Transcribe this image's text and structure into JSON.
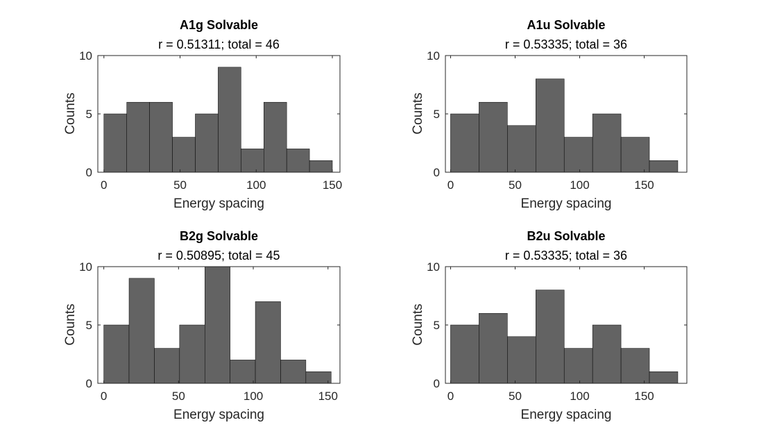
{
  "colors": {
    "bar_fill": "#636363",
    "bar_edge": "#000000",
    "axis": "#262626",
    "background": "#ffffff"
  },
  "chart_data": [
    {
      "type": "bar",
      "title": "A1g Solvable",
      "subtitle": "r = 0.51311; total = 46",
      "xlabel": "Energy spacing",
      "ylabel": "Counts",
      "xlim": [
        -4,
        155
      ],
      "ylim": [
        0,
        10
      ],
      "xticks": [
        "0",
        "50",
        "100",
        "150"
      ],
      "yticks": [
        "0",
        "5",
        "10"
      ],
      "bin_edges": [
        0,
        15,
        30,
        45,
        60,
        75,
        90,
        105,
        120,
        135,
        150
      ],
      "values": [
        5,
        6,
        6,
        3,
        5,
        9,
        2,
        6,
        2,
        1
      ]
    },
    {
      "type": "bar",
      "title": "A1u Solvable",
      "subtitle": "r = 0.53335; total = 36",
      "xlabel": "Energy spacing",
      "ylabel": "Counts",
      "xlim": [
        -4,
        183
      ],
      "ylim": [
        0,
        10
      ],
      "xticks": [
        "0",
        "50",
        "100",
        "150"
      ],
      "yticks": [
        "0",
        "5",
        "10"
      ],
      "bin_edges": [
        0,
        22,
        44,
        66,
        88,
        110,
        132,
        154,
        176
      ],
      "values": [
        5,
        6,
        4,
        8,
        3,
        5,
        3,
        1
      ]
    },
    {
      "type": "bar",
      "title": "B2g Solvable",
      "subtitle": "r = 0.50895; total = 45",
      "xlabel": "Energy spacing",
      "ylabel": "Counts",
      "xlim": [
        -4,
        158
      ],
      "ylim": [
        0,
        10
      ],
      "xticks": [
        "0",
        "50",
        "100",
        "150"
      ],
      "yticks": [
        "0",
        "5",
        "10"
      ],
      "bin_edges": [
        0,
        16.9,
        33.8,
        50.7,
        67.6,
        84.5,
        101.4,
        118.3,
        135.2,
        152.1
      ],
      "values": [
        5,
        9,
        3,
        5,
        10,
        2,
        7,
        2,
        1
      ]
    },
    {
      "type": "bar",
      "title": "B2u Solvable",
      "subtitle": "r = 0.53335; total = 36",
      "xlabel": "Energy spacing",
      "ylabel": "Counts",
      "xlim": [
        -4,
        183
      ],
      "ylim": [
        0,
        10
      ],
      "xticks": [
        "0",
        "50",
        "100",
        "150"
      ],
      "yticks": [
        "0",
        "5",
        "10"
      ],
      "bin_edges": [
        0,
        22,
        44,
        66,
        88,
        110,
        132,
        154,
        176
      ],
      "values": [
        5,
        6,
        4,
        8,
        3,
        5,
        3,
        1
      ]
    }
  ]
}
